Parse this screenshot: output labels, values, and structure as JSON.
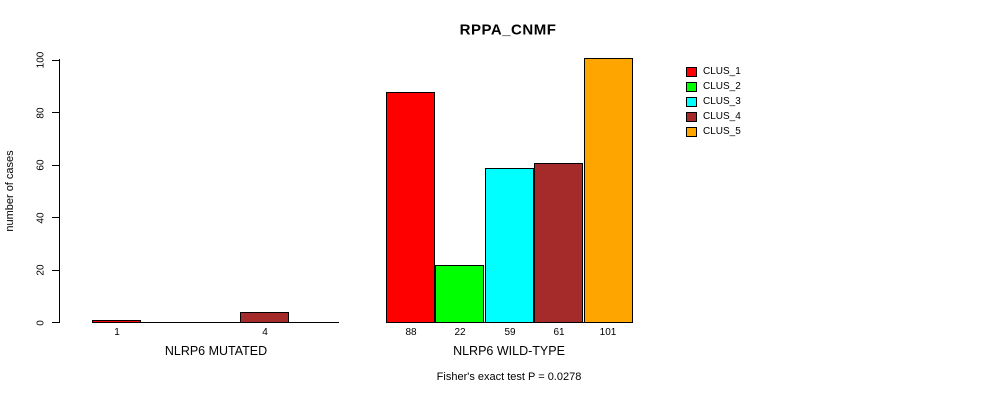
{
  "chart_data": {
    "type": "bar",
    "title": "RPPA_CNMF",
    "ylabel": "number of cases",
    "xlabel": "",
    "ylim": [
      0,
      100
    ],
    "yticks": [
      0,
      20,
      40,
      60,
      80,
      100
    ],
    "grid": false,
    "legend_position": "right",
    "series_names": [
      "CLUS_1",
      "CLUS_2",
      "CLUS_3",
      "CLUS_4",
      "CLUS_5"
    ],
    "series_colors": [
      "#ff0000",
      "#00ff00",
      "#00ffff",
      "#a52a2a",
      "#ffa500"
    ],
    "groups": [
      {
        "label": "NLRP6 MUTATED",
        "values": [
          1,
          0,
          0,
          4,
          0
        ]
      },
      {
        "label": "NLRP6 WILD-TYPE",
        "values": [
          88,
          22,
          59,
          61,
          101
        ]
      }
    ],
    "bar_value_labels": [
      "1",
      "4",
      "88",
      "22",
      "59",
      "61",
      "101"
    ],
    "annotation": "Fisher's exact test P = 0.0278"
  }
}
